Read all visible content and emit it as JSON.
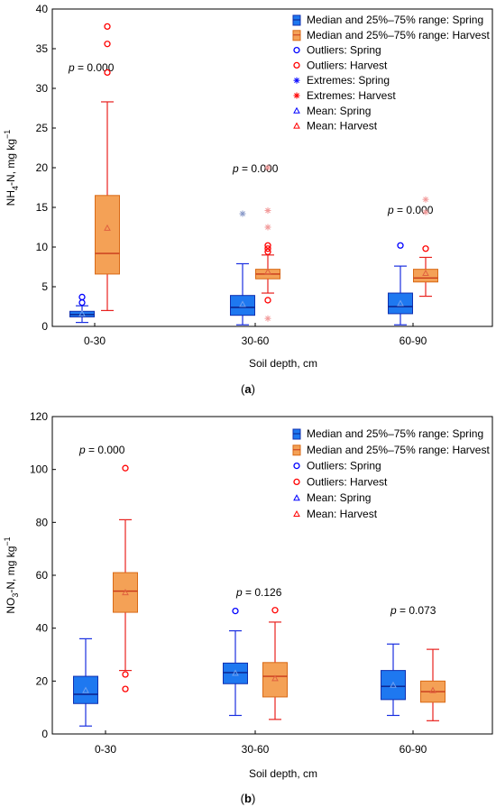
{
  "colors": {
    "spring_fill": "#1E78F0",
    "spring_stroke": "#1030B0",
    "harvest_fill": "#F4A156",
    "harvest_stroke": "#D96A16",
    "harvest_whisker": "#E8211E",
    "spring_whisker": "#1A2FE0",
    "extreme_spring": "#8899C8",
    "extreme_harvest": "#F29A9A"
  },
  "chart_data": [
    {
      "type": "box",
      "panel_label": "(a)",
      "xlabel": "Soil depth, cm",
      "ylabel": {
        "main": "NH",
        "sub": "4",
        "rest": "-N, mg kg",
        "sup": "−1"
      },
      "ylim": [
        0,
        40
      ],
      "yticks": [
        "0",
        "5",
        "10",
        "15",
        "20",
        "25",
        "30",
        "35",
        "40"
      ],
      "categories": [
        "0-30",
        "30-60",
        "60-90"
      ],
      "legend": [
        {
          "label": "Median and 25%–75% range: Spring",
          "symbol": "box-spring"
        },
        {
          "label": "Median and 25%–75% range: Harvest",
          "symbol": "box-harvest"
        },
        {
          "label": "Outliers: Spring",
          "symbol": "circle-spring"
        },
        {
          "label": "Outliers: Harvest",
          "symbol": "circle-harvest"
        },
        {
          "label": "Extremes: Spring",
          "symbol": "star-spring"
        },
        {
          "label": "Extremes: Harvest",
          "symbol": "star-harvest"
        },
        {
          "label": "Mean: Spring",
          "symbol": "tri-spring"
        },
        {
          "label": "Mean: Harvest",
          "symbol": "tri-harvest"
        }
      ],
      "p_values": [
        {
          "category": "0-30",
          "label": "p = 0.000"
        },
        {
          "category": "30-60",
          "label": "p = 0.000"
        },
        {
          "category": "60-90",
          "label": "p = 0.000"
        }
      ],
      "series": [
        {
          "name": "Spring",
          "boxes": [
            {
              "category": "0-30",
              "min": 0.5,
              "q1": 1.2,
              "median": 1.5,
              "q3": 1.9,
              "max": 2.6,
              "mean": 1.6,
              "outliers": [
                3.0,
                3.7
              ],
              "extremes": []
            },
            {
              "category": "30-60",
              "min": 0.2,
              "q1": 1.4,
              "median": 2.4,
              "q3": 3.9,
              "max": 7.9,
              "mean": 2.8,
              "outliers": [],
              "extremes": [
                14.2
              ]
            },
            {
              "category": "60-90",
              "min": 0.2,
              "q1": 1.6,
              "median": 2.5,
              "q3": 4.2,
              "max": 7.6,
              "mean": 2.9,
              "outliers": [
                10.2
              ],
              "extremes": []
            }
          ]
        },
        {
          "name": "Harvest",
          "boxes": [
            {
              "category": "0-30",
              "min": 2.0,
              "q1": 6.6,
              "median": 9.2,
              "q3": 16.5,
              "max": 28.3,
              "mean": 12.4,
              "outliers": [
                32.0,
                35.6,
                37.8
              ],
              "extremes": []
            },
            {
              "category": "30-60",
              "min": 4.2,
              "q1": 6.0,
              "median": 6.6,
              "q3": 7.2,
              "max": 9.0,
              "mean": 6.9,
              "outliers": [
                3.3,
                9.4,
                9.8,
                10.2
              ],
              "extremes": [
                1.0,
                12.5,
                14.6,
                20.0
              ]
            },
            {
              "category": "60-90",
              "min": 3.8,
              "q1": 5.6,
              "median": 6.1,
              "q3": 7.2,
              "max": 8.7,
              "mean": 6.7,
              "outliers": [
                9.8
              ],
              "extremes": [
                14.4,
                16.0
              ]
            }
          ]
        }
      ]
    },
    {
      "type": "box",
      "panel_label": "(b)",
      "xlabel": "Soil depth, cm",
      "ylabel": {
        "main": "NO",
        "sub": "3",
        "rest": "-N, mg kg",
        "sup": "−1"
      },
      "ylim": [
        0,
        120
      ],
      "yticks": [
        "0",
        "20",
        "40",
        "60",
        "80",
        "100",
        "120"
      ],
      "categories": [
        "0-30",
        "30-60",
        "60-90"
      ],
      "legend": [
        {
          "label": "Median and 25%–75% range: Spring",
          "symbol": "box-spring"
        },
        {
          "label": "Median and 25%–75% range: Harvest",
          "symbol": "box-harvest"
        },
        {
          "label": "Outliers: Spring",
          "symbol": "circle-spring"
        },
        {
          "label": "Outliers: Harvest",
          "symbol": "circle-harvest"
        },
        {
          "label": "Mean: Spring",
          "symbol": "tri-spring"
        },
        {
          "label": "Mean: Harvest",
          "symbol": "tri-harvest"
        }
      ],
      "p_values": [
        {
          "category": "0-30",
          "label": "p = 0.000"
        },
        {
          "category": "30-60",
          "label": "p = 0.126"
        },
        {
          "category": "60-90",
          "label": "p = 0.073"
        }
      ],
      "series": [
        {
          "name": "Spring",
          "boxes": [
            {
              "category": "0-30",
              "min": 3,
              "q1": 11.5,
              "median": 15,
              "q3": 21.8,
              "max": 36,
              "mean": 16.5,
              "outliers": [],
              "extremes": []
            },
            {
              "category": "30-60",
              "min": 7,
              "q1": 19,
              "median": 23.2,
              "q3": 26.8,
              "max": 39,
              "mean": 23,
              "outliers": [
                46.5
              ],
              "extremes": []
            },
            {
              "category": "60-90",
              "min": 7,
              "q1": 13,
              "median": 18,
              "q3": 24,
              "max": 34,
              "mean": 18.5,
              "outliers": [],
              "extremes": []
            }
          ]
        },
        {
          "name": "Harvest",
          "boxes": [
            {
              "category": "0-30",
              "min": 24,
              "q1": 46,
              "median": 54,
              "q3": 61,
              "max": 81,
              "mean": 53.5,
              "outliers": [
                17,
                22.5,
                100.5
              ],
              "extremes": []
            },
            {
              "category": "30-60",
              "min": 5.5,
              "q1": 14,
              "median": 21.8,
              "q3": 27,
              "max": 42.3,
              "mean": 21,
              "outliers": [
                46.8
              ],
              "extremes": []
            },
            {
              "category": "60-90",
              "min": 5,
              "q1": 12,
              "median": 16,
              "q3": 20,
              "max": 32,
              "mean": 16.5,
              "outliers": [],
              "extremes": []
            }
          ]
        }
      ]
    }
  ]
}
